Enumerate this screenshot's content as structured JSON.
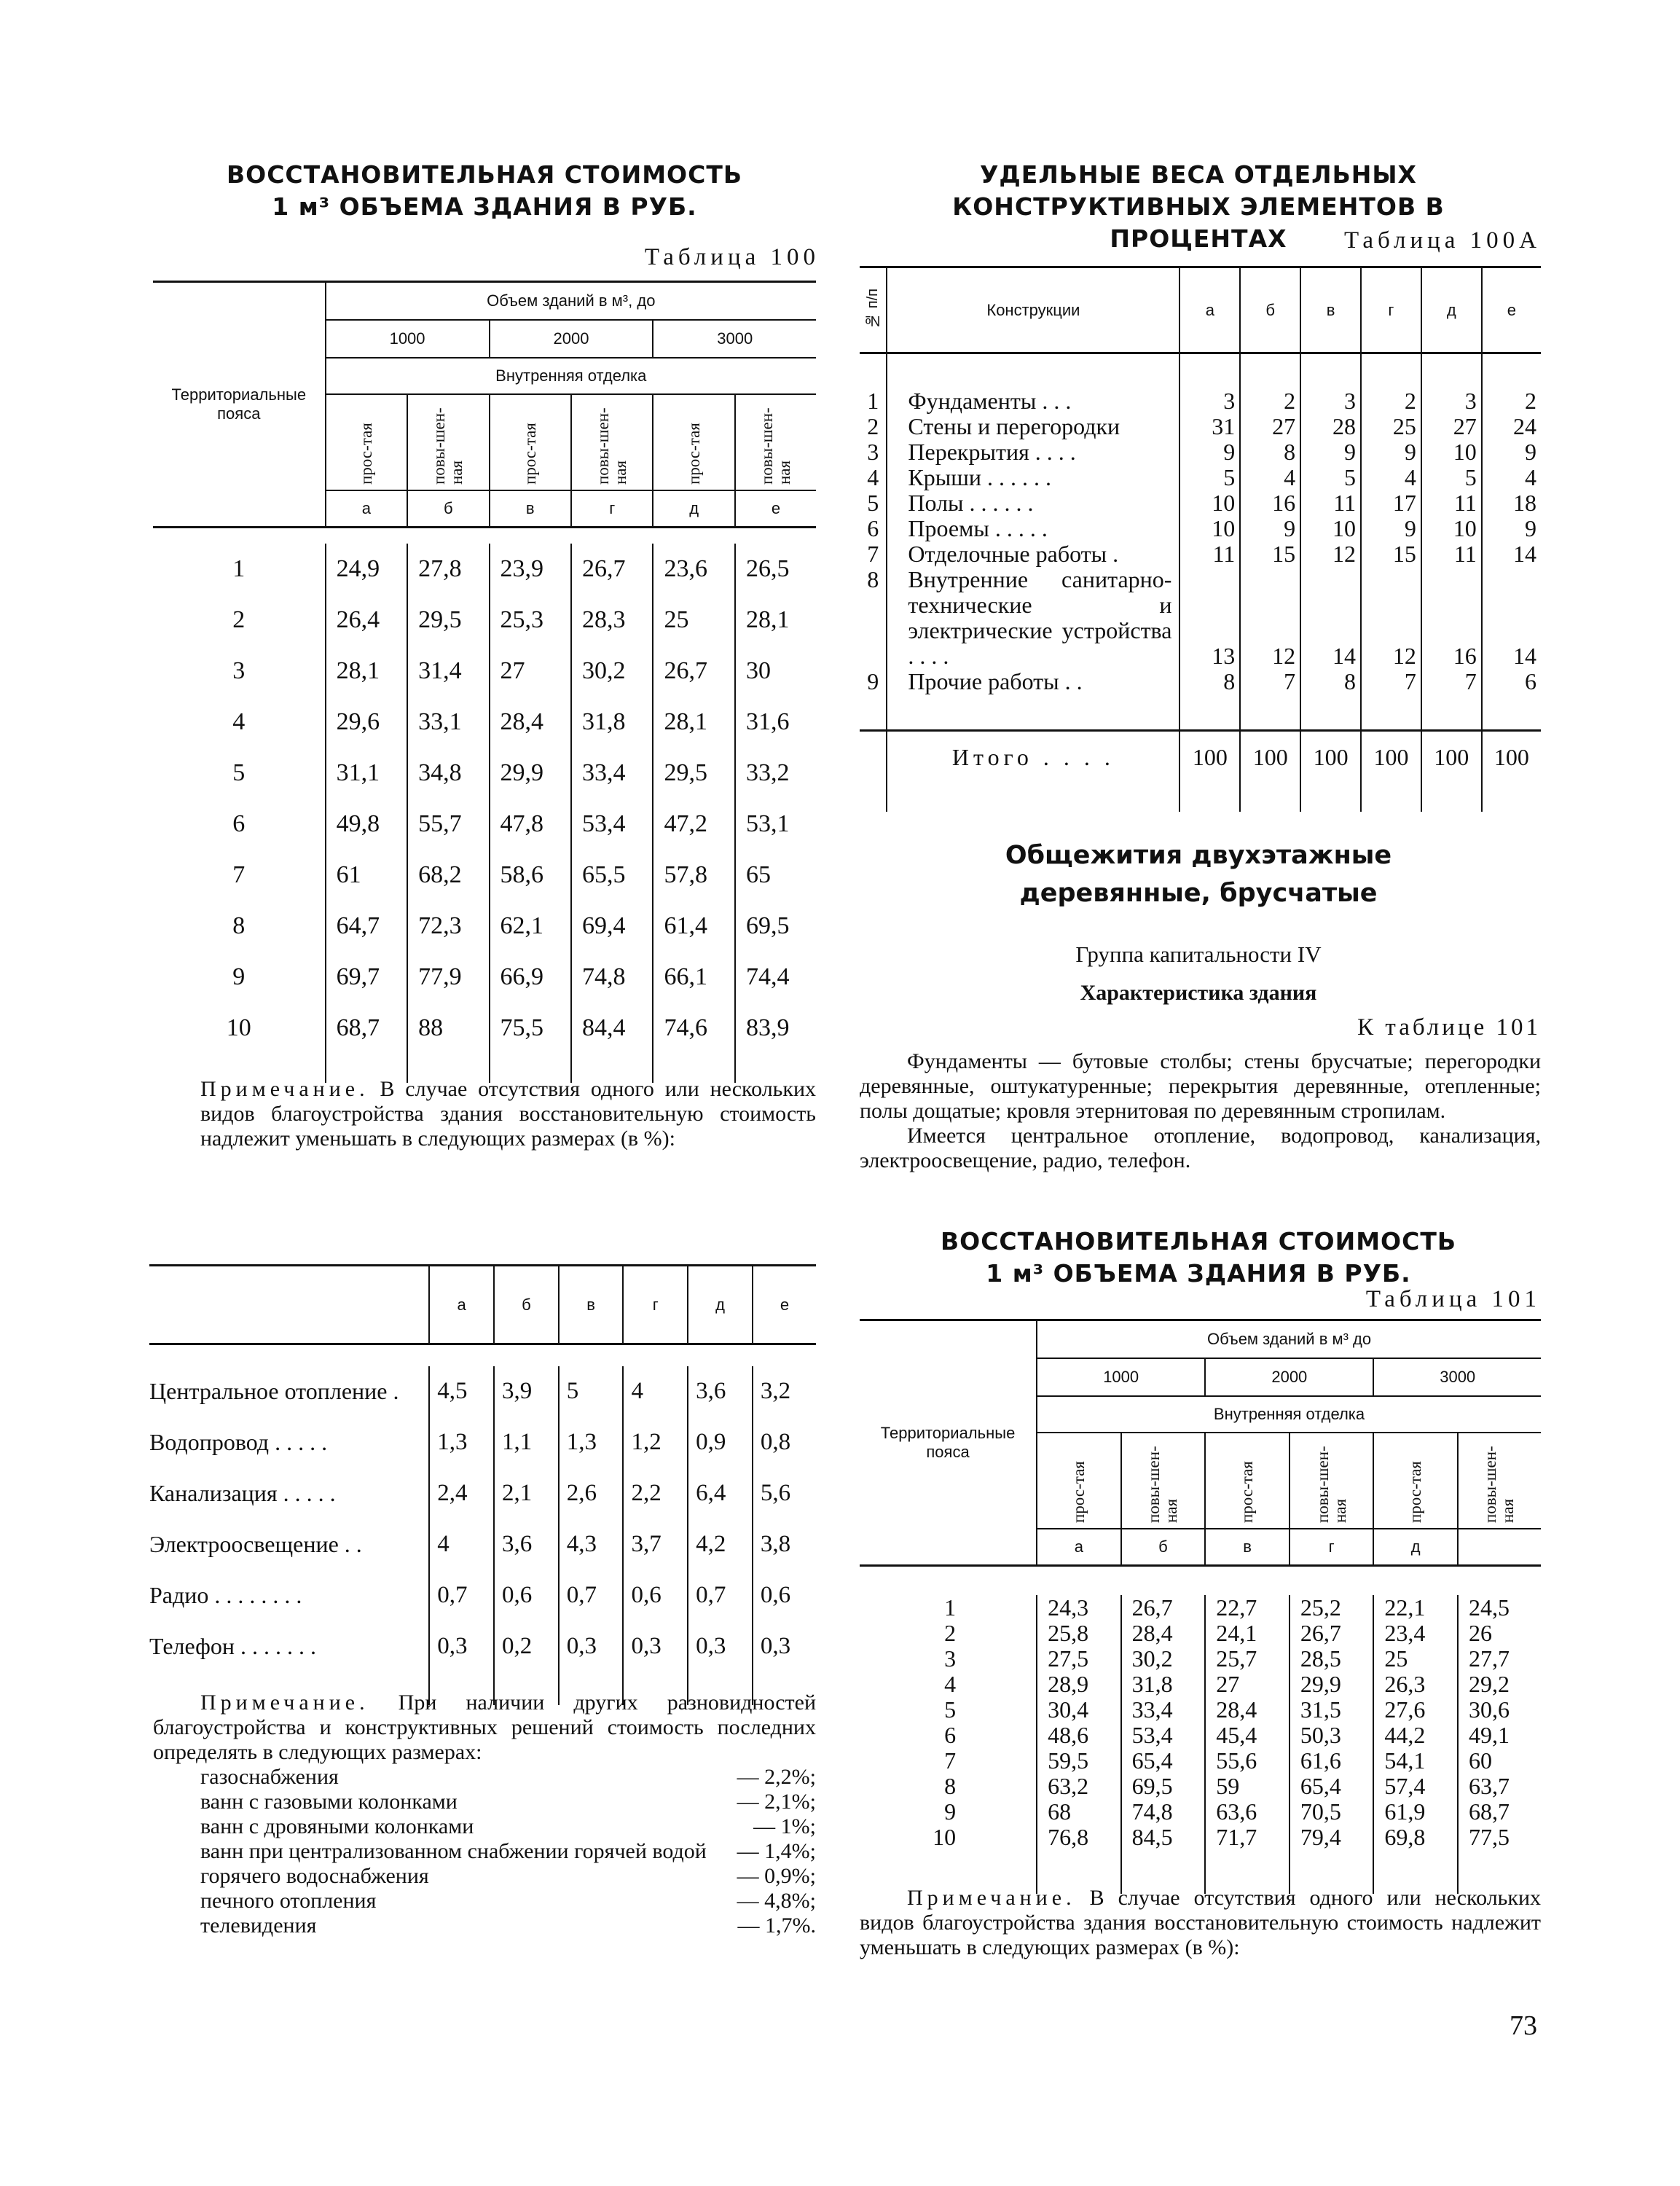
{
  "left": {
    "title1": "ВОССТАНОВИТЕЛЬНАЯ СТОИМОСТЬ",
    "title2": "1 м³ ОБЪЕМА ЗДАНИЯ В РУБ.",
    "table_no": "Таблица 100",
    "table100": {
      "row_header": "Территориальные пояса",
      "volume_header": "Объем зданий в м³, до",
      "volumes": [
        "1000",
        "2000",
        "3000"
      ],
      "finish_header": "Внутренняя отделка",
      "finish_types": [
        "прос-тая",
        "повы-шен-ная",
        "прос-тая",
        "повы-шен-ная",
        "прос-тая",
        "повы-шен-ная"
      ],
      "letters": [
        "а",
        "б",
        "в",
        "г",
        "д",
        "е"
      ],
      "rows": [
        [
          "1",
          "24,9",
          "27,8",
          "23,9",
          "26,7",
          "23,6",
          "26,5"
        ],
        [
          "2",
          "26,4",
          "29,5",
          "25,3",
          "28,3",
          "25",
          "28,1"
        ],
        [
          "3",
          "28,1",
          "31,4",
          "27",
          "30,2",
          "26,7",
          "30"
        ],
        [
          "4",
          "29,6",
          "33,1",
          "28,4",
          "31,8",
          "28,1",
          "31,6"
        ],
        [
          "5",
          "31,1",
          "34,8",
          "29,9",
          "33,4",
          "29,5",
          "33,2"
        ],
        [
          "6",
          "49,8",
          "55,7",
          "47,8",
          "53,4",
          "47,2",
          "53,1"
        ],
        [
          "7",
          "61",
          "68,2",
          "58,6",
          "65,5",
          "57,8",
          "65"
        ],
        [
          "8",
          "64,7",
          "72,3",
          "62,1",
          "69,4",
          "61,4",
          "69,5"
        ],
        [
          "9",
          "69,7",
          "77,9",
          "66,9",
          "74,8",
          "66,1",
          "74,4"
        ],
        [
          "10",
          "68,7",
          "88",
          "75,5",
          "84,4",
          "74,6",
          "83,9"
        ]
      ]
    },
    "note1_label": "Примечание.",
    "note1_text": " В случае отсутствия одного или нескольких видов благоустройства здания восстановительную стоимость надлежит уменьшать в следующих размерах (в %):",
    "reduction": {
      "letters": [
        "а",
        "б",
        "в",
        "г",
        "д",
        "е"
      ],
      "rows": [
        [
          "Центральное отопление .",
          "4,5",
          "3,9",
          "5",
          "4",
          "3,6",
          "3,2"
        ],
        [
          "Водопровод . . . . .",
          "1,3",
          "1,1",
          "1,3",
          "1,2",
          "0,9",
          "0,8"
        ],
        [
          "Канализация . . . . .",
          "2,4",
          "2,1",
          "2,6",
          "2,2",
          "6,4",
          "5,6"
        ],
        [
          "Электроосвещение . .",
          "4",
          "3,6",
          "4,3",
          "3,7",
          "4,2",
          "3,8"
        ],
        [
          "Радио . . . . . . . .",
          "0,7",
          "0,6",
          "0,7",
          "0,6",
          "0,7",
          "0,6"
        ],
        [
          "Телефон . . . . . . .",
          "0,3",
          "0,2",
          "0,3",
          "0,3",
          "0,3",
          "0,3"
        ]
      ]
    },
    "note2_label": "Примечание.",
    "note2_text": " При наличии других разновидностей благоустройства и конструктивных решений стоимость последних определять в следующих размерах:",
    "note2_items": [
      [
        "газоснабжения",
        "— 2,2%;"
      ],
      [
        "ванн с газовыми колонками",
        "— 2,1%;"
      ],
      [
        "ванн с дровяными колонками",
        "— 1%;"
      ],
      [
        "ванн при централизованном снабжении горячей водой",
        "— 1,4%;"
      ],
      [
        "горячего водоснабжения",
        "— 0,9%;"
      ],
      [
        "печного отопления",
        "— 4,8%;"
      ],
      [
        "телевидения",
        "— 1,7%."
      ]
    ]
  },
  "right": {
    "title1": "УДЕЛЬНЫЕ ВЕСА ОТДЕЛЬНЫХ",
    "title2": "КОНСТРУКТИВНЫХ ЭЛЕМЕНТОВ В ПРОЦЕНТАХ",
    "table_no": "Таблица 100А",
    "table100a": {
      "no_header": "№ п/п",
      "name_header": "Конструкции",
      "letters": [
        "а",
        "б",
        "в",
        "г",
        "д",
        "е"
      ],
      "rows": [
        [
          "1",
          "Фундаменты . . .",
          "3",
          "2",
          "3",
          "2",
          "3",
          "2"
        ],
        [
          "2",
          "Стены и перегородки",
          "31",
          "27",
          "28",
          "25",
          "27",
          "24"
        ],
        [
          "3",
          "Перекрытия . . . .",
          "9",
          "8",
          "9",
          "9",
          "10",
          "9"
        ],
        [
          "4",
          "Крыши . . . . . .",
          "5",
          "4",
          "5",
          "4",
          "5",
          "4"
        ],
        [
          "5",
          "Полы . . . . . .",
          "10",
          "16",
          "11",
          "17",
          "11",
          "18"
        ],
        [
          "6",
          "Проемы . . . . .",
          "10",
          "9",
          "10",
          "9",
          "10",
          "9"
        ],
        [
          "7",
          "Отделочные работы .",
          "11",
          "15",
          "12",
          "15",
          "11",
          "14"
        ],
        [
          "8",
          "Внутренние санитарно-технические и электрические устройства . . . .",
          "13",
          "12",
          "14",
          "12",
          "16",
          "14"
        ],
        [
          "9",
          "Прочие работы . .",
          "8",
          "7",
          "8",
          "7",
          "7",
          "6"
        ]
      ],
      "total_label": "Итого . . . .",
      "totals": [
        "100",
        "100",
        "100",
        "100",
        "100",
        "100"
      ]
    },
    "section_title1": "Общежития двухэтажные",
    "section_title2": "деревянные, брусчатые",
    "group": "Группа капитальности IV",
    "characteristic": "Характеристика здания",
    "to_table": "К таблице 101",
    "desc1": "Фундаменты — бутовые столбы; стены брусчатые; перегородки деревянные, оштукатуренные; перекрытия деревянные, отепленные; полы дощатые; кровля этернитовая по деревянным стропилам.",
    "desc2": "Имеется центральное отопление, водопровод, канализация, электроосвещение, радио, телефон.",
    "title3": "ВОССТАНОВИТЕЛЬНАЯ СТОИМОСТЬ",
    "title4": "1 м³ ОБЪЕМА ЗДАНИЯ В РУБ.",
    "table_no2": "Таблица 101",
    "table101": {
      "row_header": "Территориальные пояса",
      "volume_header": "Объем зданий в м³ до",
      "volumes": [
        "1000",
        "2000",
        "3000"
      ],
      "finish_header": "Внутренняя отделка",
      "finish_types": [
        "прос-тая",
        "повы-шен-ная",
        "прос-тая",
        "повы-шен-ная",
        "прос-тая",
        "повы-шен-ная"
      ],
      "letters": [
        "а",
        "б",
        "в",
        "г",
        "д",
        ""
      ],
      "rows": [
        [
          "1",
          "24,3",
          "26,7",
          "22,7",
          "25,2",
          "22,1",
          "24,5"
        ],
        [
          "2",
          "25,8",
          "28,4",
          "24,1",
          "26,7",
          "23,4",
          "26"
        ],
        [
          "3",
          "27,5",
          "30,2",
          "25,7",
          "28,5",
          "25",
          "27,7"
        ],
        [
          "4",
          "28,9",
          "31,8",
          "27",
          "29,9",
          "26,3",
          "29,2"
        ],
        [
          "5",
          "30,4",
          "33,4",
          "28,4",
          "31,5",
          "27,6",
          "30,6"
        ],
        [
          "6",
          "48,6",
          "53,4",
          "45,4",
          "50,3",
          "44,2",
          "49,1"
        ],
        [
          "7",
          "59,5",
          "65,4",
          "55,6",
          "61,6",
          "54,1",
          "60"
        ],
        [
          "8",
          "63,2",
          "69,5",
          "59",
          "65,4",
          "57,4",
          "63,7"
        ],
        [
          "9",
          "68",
          "74,8",
          "63,6",
          "70,5",
          "61,9",
          "68,7"
        ],
        [
          "10",
          "76,8",
          "84,5",
          "71,7",
          "79,4",
          "69,8",
          "77,5"
        ]
      ]
    },
    "note_label": "Примечание.",
    "note_text": " В случае отсутствия одного или нескольких видов благоустройства здания восстановительную стоимость надлежит уменьшать в следующих размерах (в %):"
  },
  "page_number": "73"
}
